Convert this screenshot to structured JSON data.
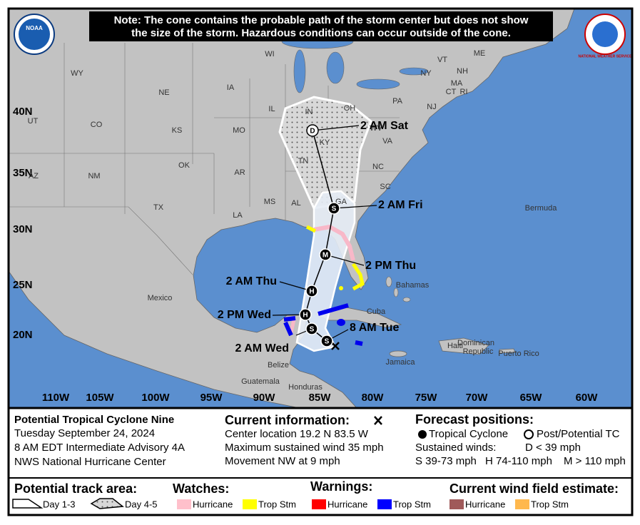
{
  "note_lines": [
    "Note: The cone contains the probable path of the storm center but does not show",
    "the size of the storm. Hazardous conditions can occur outside of the cone."
  ],
  "logos": {
    "left": "NOAA",
    "right": "NATIONAL WEATHER SERVICE"
  },
  "map": {
    "lat_labels": [
      "40N",
      "35N",
      "30N",
      "25N",
      "20N"
    ],
    "lon_labels": [
      "110W",
      "105W",
      "100W",
      "95W",
      "90W",
      "85W",
      "80W",
      "75W",
      "70W",
      "65W",
      "60W"
    ],
    "places": [
      "WY",
      "NE",
      "IA",
      "WI",
      "NY",
      "NH",
      "VT",
      "ME",
      "MA",
      "CT",
      "RI",
      "PA",
      "NJ",
      "OH",
      "IN",
      "IL",
      "WV",
      "VA",
      "KY",
      "MO",
      "KS",
      "CO",
      "UT",
      "NM",
      "OK",
      "AR",
      "TN",
      "NC",
      "SC",
      "GA",
      "AL",
      "MS",
      "LA",
      "TX",
      "AZ",
      "Mexico",
      "Cuba",
      "Bahamas",
      "Bermuda",
      "Jamaica",
      "Haiti",
      "Dominican",
      "Republic",
      "Puerto Rico",
      "Belize",
      "Guatemala",
      "Honduras"
    ],
    "forecast": [
      {
        "symbol": "S",
        "time": "8 AM Tue"
      },
      {
        "symbol": "S",
        "time": "2 AM Wed"
      },
      {
        "symbol": "H",
        "time": "2 PM Wed"
      },
      {
        "symbol": "H",
        "time": "2 AM Thu"
      },
      {
        "symbol": "M",
        "time": "2 PM Thu"
      },
      {
        "symbol": "S",
        "time": "2 AM Fri"
      },
      {
        "symbol": "D",
        "time": "2 AM Sat"
      }
    ]
  },
  "info": {
    "storm": [
      "Potential Tropical Cyclone Nine",
      "Tuesday September 24, 2024",
      "8 AM EDT Intermediate Advisory 4A",
      "NWS National Hurricane Center"
    ],
    "current": {
      "title": "Current information:",
      "lines": [
        "Center location 19.2 N 83.5 W",
        "Maximum sustained wind 35 mph",
        "Movement NW at 9 mph"
      ]
    },
    "forecast": {
      "title": "Forecast positions:",
      "tropical": "Tropical Cyclone",
      "post": "Post/Potential TC",
      "winds": "Sustained winds:",
      "d": "D < 39 mph",
      "s": "S 39-73 mph",
      "h": "H 74-110 mph",
      "m": "M > 110 mph"
    }
  },
  "legend": {
    "track": {
      "title": "Potential track area:",
      "day13": "Day 1-3",
      "day45": "Day 4-5"
    },
    "watches": {
      "title": "Watches:",
      "items": [
        "Hurricane",
        "Trop Stm"
      ]
    },
    "warnings": {
      "title": "Warnings:",
      "items": [
        "Hurricane",
        "Trop Stm"
      ]
    },
    "wind": {
      "title": "Current wind field estimate:",
      "items": [
        "Hurricane",
        "Trop Stm"
      ]
    }
  }
}
